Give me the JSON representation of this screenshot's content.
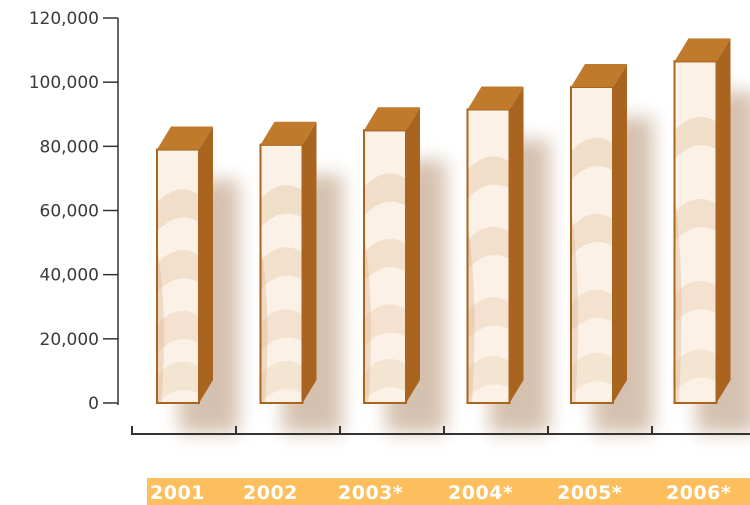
{
  "chart_data": {
    "type": "bar",
    "categories": [
      "2001",
      "2002",
      "2003*",
      "2004*",
      "2005*",
      "2006*"
    ],
    "values": [
      79000,
      80500,
      85000,
      91500,
      98500,
      106500
    ],
    "yticks": [
      "0",
      "20,000",
      "40,000",
      "60,000",
      "80,000",
      "100,000",
      "120,000"
    ],
    "ylim": [
      0,
      120000
    ],
    "title": "",
    "xlabel": "",
    "ylabel": "",
    "grid": false,
    "legend": "none",
    "colors": {
      "bar_top": "#c07a2c",
      "bar_side": "#a9651f",
      "bar_outline": "#a9651f",
      "bar_fill_light": "#fbf1e6",
      "bar_fill_band": "#e9cdb1",
      "category_band": "#fdbf5e",
      "axis": "#333333"
    }
  }
}
